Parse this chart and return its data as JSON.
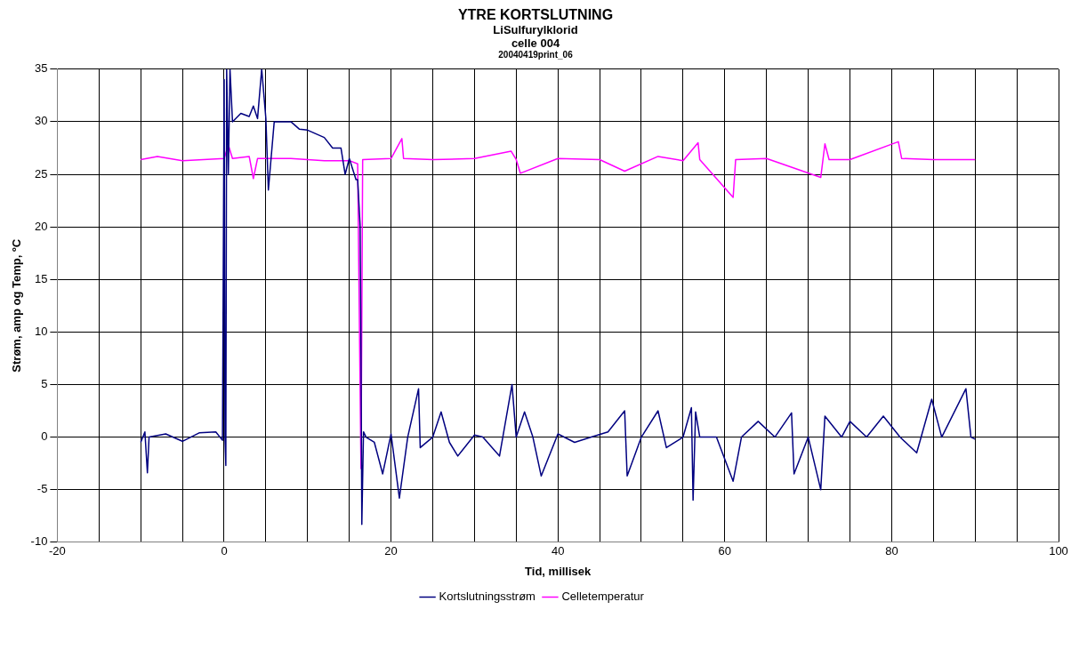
{
  "chart_data": {
    "type": "line",
    "title": "YTRE KORTSLUTNING",
    "subtitle": "LiSulfurylklorid",
    "annotations": [
      "celle 004",
      "20040419print_06"
    ],
    "xlabel": "Tid, millisek",
    "ylabel": "Strøm, amp og Temp, ºC",
    "xlim": [
      -20,
      100
    ],
    "ylim": [
      -10,
      35
    ],
    "xticks": [
      -20,
      {
        "value": -15,
        "label": null
      },
      {
        "value": -10,
        "label": null
      },
      {
        "value": -5,
        "label": null
      },
      0,
      {
        "value": 5,
        "label": null
      },
      {
        "value": 10,
        "label": null
      },
      {
        "value": 15,
        "label": null
      },
      20,
      {
        "value": 25,
        "label": null
      },
      {
        "value": 30,
        "label": null
      },
      {
        "value": 35,
        "label": null
      },
      40,
      {
        "value": 45,
        "label": null
      },
      {
        "value": 50,
        "label": null
      },
      {
        "value": 55,
        "label": null
      },
      60,
      {
        "value": 65,
        "label": null
      },
      {
        "value": 70,
        "label": null
      },
      {
        "value": 75,
        "label": null
      },
      80,
      {
        "value": 85,
        "label": null
      },
      {
        "value": 90,
        "label": null
      },
      {
        "value": 95,
        "label": null
      },
      100
    ],
    "yticks": [
      -10,
      -5,
      0,
      5,
      10,
      15,
      20,
      25,
      30,
      35
    ],
    "grid": true,
    "legend": "bottom",
    "marker": "none",
    "line_style": "solid",
    "series": [
      {
        "name": "Kortslutningsstrøm",
        "color": "#000080",
        "x": [
          -10,
          -9.5,
          -9.2,
          -9,
          -7,
          -5,
          -3,
          -1,
          -0.2,
          0,
          0.1,
          0.2,
          0.3,
          0.5,
          0.7,
          1,
          2,
          3,
          3.5,
          4,
          4.5,
          5,
          5.3,
          6,
          8,
          9,
          10,
          12,
          13,
          14,
          14.5,
          15,
          15.8,
          16,
          16.3,
          16.4,
          16.5,
          16.7,
          17,
          18,
          19,
          20,
          21,
          22,
          23.3,
          23.5,
          25,
          26,
          27,
          28,
          30,
          31,
          33,
          34.5,
          35,
          36,
          37,
          38,
          40,
          42,
          44,
          46,
          48,
          48.3,
          50,
          52,
          53,
          55,
          56,
          56.2,
          56.5,
          57,
          59,
          61,
          62,
          64,
          66,
          68,
          68.3,
          70,
          71.5,
          72,
          74,
          75,
          77,
          79,
          81,
          83,
          84.8,
          86,
          88.9,
          89.5,
          90
        ],
        "values": [
          -0.5,
          0.5,
          -3.4,
          0,
          0.3,
          -0.4,
          0.4,
          0.5,
          -0.3,
          34,
          0,
          -2.7,
          35,
          25,
          35,
          30,
          30.8,
          30.5,
          31.5,
          30.3,
          35,
          30.3,
          23.5,
          30,
          30,
          29.3,
          29.2,
          28.5,
          27.5,
          27.5,
          25,
          26.5,
          24.5,
          24.5,
          20,
          8,
          -8.3,
          0.5,
          0,
          -0.5,
          -3.5,
          0.3,
          -5.8,
          0,
          4.6,
          -1,
          0,
          2.4,
          -0.5,
          -1.8,
          0.2,
          0,
          -1.8,
          5,
          0,
          2.4,
          0,
          -3.7,
          0.3,
          -0.5,
          0,
          0.5,
          2.5,
          -3.7,
          0,
          2.5,
          -1,
          0,
          2.8,
          -6,
          2.4,
          0,
          0,
          -4.2,
          0,
          1.5,
          0,
          2.3,
          -3.5,
          0,
          -5,
          2,
          0,
          1.5,
          0,
          2,
          0,
          -1.5,
          3.6,
          0,
          4.6,
          0,
          -0.2
        ]
      },
      {
        "name": "Celletemperatur",
        "color": "#ff00ff",
        "x": [
          -10,
          -8,
          -5,
          0,
          0.5,
          1,
          3,
          3.5,
          4,
          8,
          12,
          15,
          16,
          16.4,
          16.6,
          20,
          21.3,
          21.5,
          25,
          30,
          34.4,
          35,
          35.5,
          40,
          45,
          48,
          52,
          55,
          56.8,
          57,
          61,
          61.3,
          65,
          71.5,
          72,
          72.5,
          75,
          80.8,
          81.2,
          85,
          90
        ],
        "values": [
          26.4,
          26.7,
          26.3,
          26.5,
          27.8,
          26.5,
          26.7,
          24.6,
          26.5,
          26.5,
          26.3,
          26.3,
          26,
          -3,
          26.4,
          26.5,
          28.4,
          26.5,
          26.4,
          26.5,
          27.2,
          26.4,
          25.1,
          26.5,
          26.4,
          25.3,
          26.7,
          26.3,
          28,
          26.4,
          22.8,
          26.4,
          26.5,
          24.7,
          27.9,
          26.4,
          26.4,
          28.1,
          26.5,
          26.4,
          26.4
        ]
      }
    ]
  }
}
